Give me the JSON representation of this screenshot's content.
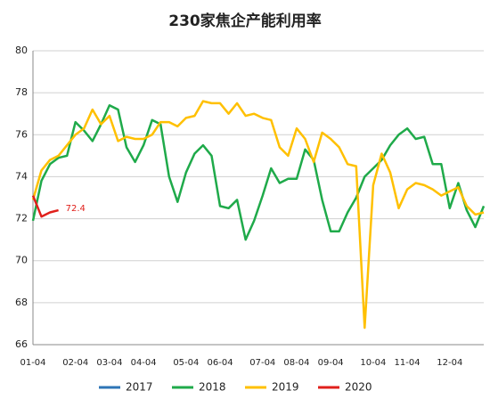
{
  "chart_data": {
    "type": "line",
    "title": "230家焦企产能利用率",
    "categories": [
      "01-04",
      null,
      null,
      null,
      null,
      "02-04",
      null,
      null,
      null,
      "03-04",
      null,
      null,
      null,
      "04-04",
      null,
      null,
      null,
      null,
      "05-04",
      null,
      null,
      null,
      "06-04",
      null,
      null,
      null,
      null,
      "07-04",
      null,
      null,
      null,
      "08-04",
      null,
      null,
      null,
      "09-04",
      null,
      null,
      null,
      null,
      "10-04",
      null,
      null,
      null,
      "11-04",
      null,
      null,
      null,
      null,
      "12-04",
      null,
      null,
      null,
      null
    ],
    "series": [
      {
        "name": "2017",
        "color": "#2e75b6",
        "values": [
          null,
          null,
          null,
          null,
          null,
          null,
          null,
          null,
          null,
          null,
          null,
          null,
          null,
          null,
          null,
          null,
          null,
          null,
          null,
          null,
          null,
          null,
          null,
          null,
          null,
          null,
          null,
          null,
          null,
          null,
          null,
          null,
          null,
          null,
          null,
          null,
          null,
          null,
          null,
          null,
          null,
          null,
          null,
          null,
          null,
          null,
          null,
          null,
          null,
          null,
          null,
          null,
          null,
          null
        ]
      },
      {
        "name": "2018",
        "color": "#1faa4a",
        "values": [
          71.9,
          73.8,
          74.6,
          74.9,
          75.0,
          76.6,
          76.2,
          75.7,
          76.5,
          77.4,
          77.2,
          75.4,
          74.7,
          75.5,
          76.7,
          76.5,
          74.0,
          72.8,
          74.2,
          75.1,
          75.5,
          75.0,
          72.6,
          72.5,
          72.9,
          71.0,
          71.9,
          73.1,
          74.4,
          73.7,
          73.9,
          73.9,
          75.3,
          74.8,
          72.9,
          71.4,
          71.4,
          72.3,
          73.0,
          74.0,
          74.4,
          74.8,
          75.5,
          76.0,
          76.3,
          75.8,
          75.9,
          74.6,
          74.6,
          72.5,
          73.7,
          72.4,
          71.6,
          72.6
        ]
      },
      {
        "name": "2019",
        "color": "#ffc000",
        "values": [
          72.9,
          74.3,
          74.8,
          75.0,
          75.5,
          76.0,
          76.3,
          77.2,
          76.5,
          76.9,
          75.7,
          75.9,
          75.8,
          75.8,
          76.0,
          76.6,
          76.6,
          76.4,
          76.8,
          76.9,
          77.6,
          77.5,
          77.5,
          77.0,
          77.5,
          76.9,
          77.0,
          76.8,
          76.7,
          75.4,
          75.0,
          76.3,
          75.8,
          74.7,
          76.1,
          75.8,
          75.4,
          74.6,
          74.5,
          66.8,
          73.6,
          75.1,
          74.2,
          72.5,
          73.4,
          73.7,
          73.6,
          73.4,
          73.1,
          73.3,
          73.5,
          72.6,
          72.2,
          72.3
        ]
      },
      {
        "name": "2020",
        "color": "#e0201b",
        "values": [
          73.1,
          72.1,
          72.3,
          72.4,
          null,
          null,
          null,
          null,
          null,
          null,
          null,
          null,
          null,
          null,
          null,
          null,
          null,
          null,
          null,
          null,
          null,
          null,
          null,
          null,
          null,
          null,
          null,
          null,
          null,
          null,
          null,
          null,
          null,
          null,
          null,
          null,
          null,
          null,
          null,
          null,
          null,
          null,
          null,
          null,
          null,
          null,
          null,
          null,
          null,
          null,
          null,
          null,
          null,
          null
        ]
      }
    ],
    "labeled_point": {
      "series": 3,
      "index": 3
    },
    "ylim": [
      66,
      80
    ],
    "yticks": [
      66,
      68,
      70,
      72,
      74,
      76,
      78,
      80
    ],
    "grid": true,
    "legend": "bottom"
  }
}
